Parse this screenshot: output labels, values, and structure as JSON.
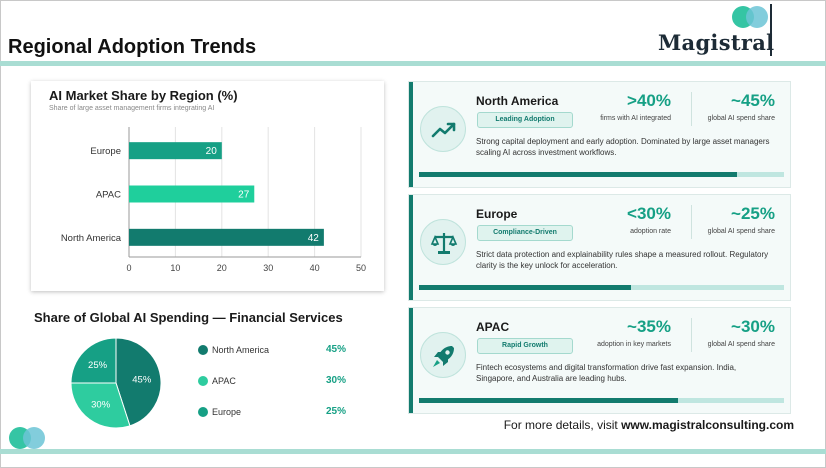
{
  "page": {
    "title": "Regional Adoption Trends",
    "footer_prefix": "For more details, visit ",
    "footer_link": "www.magistralconsulting.com"
  },
  "brand": {
    "name": "Magistral",
    "accent": "#16a085",
    "dark_teal": "#127b6e",
    "mid_teal": "#1fbf9a",
    "light_teal": "#a9ddd3"
  },
  "chart_data": [
    {
      "type": "bar",
      "orientation": "horizontal",
      "title": "AI Market Share by Region (%)",
      "subtitle": "Share of large asset management firms integrating AI",
      "categories": [
        "Europe",
        "APAC",
        "North America"
      ],
      "values": [
        20,
        27,
        42
      ],
      "colors": [
        "#16a085",
        "#1fcf9c",
        "#127b6e"
      ],
      "xlim": [
        0,
        50
      ],
      "xticks": [
        0,
        10,
        20,
        30,
        40,
        50
      ],
      "grid": true,
      "data_labels": true
    },
    {
      "type": "pie",
      "title": "Share of Global AI Spending — Financial Services",
      "categories": [
        "North America",
        "APAC",
        "Europe"
      ],
      "values": [
        45,
        30,
        25
      ],
      "value_labels": [
        "45%",
        "30%",
        "25%"
      ],
      "colors": [
        "#127b6e",
        "#2ecc9f",
        "#16a085"
      ],
      "legend": "right"
    }
  ],
  "pie_legend": [
    {
      "name": "North America",
      "value": "45%",
      "color": "#127b6e"
    },
    {
      "name": "APAC",
      "value": "30%",
      "color": "#2ecc9f"
    },
    {
      "name": "Europe",
      "value": "25%",
      "color": "#16a085"
    }
  ],
  "cards": [
    {
      "region": "North America",
      "badge": "Leading Adoption",
      "icon": "trend-up-icon",
      "stat1_value": ">40%",
      "stat1_label": "firms with AI integrated",
      "stat2_value": "~45%",
      "stat2_label": "global AI spend share",
      "description": "Strong capital deployment and early adoption. Dominated by large asset managers scaling AI across investment workflows.",
      "progress": 0.87
    },
    {
      "region": "Europe",
      "badge": "Compliance-Driven",
      "icon": "scales-icon",
      "stat1_value": "<30%",
      "stat1_label": "adoption rate",
      "stat2_value": "~25%",
      "stat2_label": "global AI spend share",
      "description": "Strict data protection and explainability rules shape a measured rollout. Regulatory clarity is the key unlock for acceleration.",
      "progress": 0.58
    },
    {
      "region": "APAC",
      "badge": "Rapid Growth",
      "icon": "rocket-icon",
      "stat1_value": "~35%",
      "stat1_label": "adoption in key markets",
      "stat2_value": "~30%",
      "stat2_label": "global AI spend share",
      "description": "Fintech ecosystems and digital transformation drive fast expansion. India, Singapore, and Australia are leading hubs.",
      "progress": 0.71
    }
  ]
}
